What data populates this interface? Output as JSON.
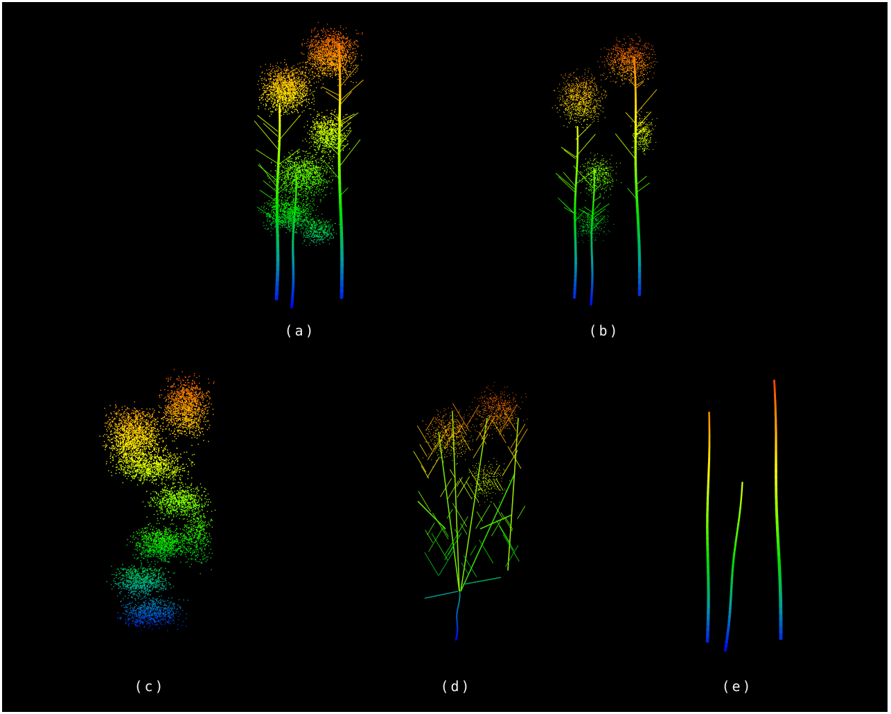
{
  "figure": {
    "background": "#000000",
    "colormap": [
      "#0000ff",
      "#00a0a0",
      "#00e000",
      "#80ff00",
      "#ffff00",
      "#ffa000",
      "#ff4000"
    ],
    "panels": [
      {
        "key": "a",
        "label": "(a)",
        "content": "full-point-cloud-three-trees"
      },
      {
        "key": "b",
        "label": "(b)",
        "content": "three-trees-thinned"
      },
      {
        "key": "c",
        "label": "(c)",
        "content": "foliage-points"
      },
      {
        "key": "d",
        "label": "(d)",
        "content": "branch-skeleton"
      },
      {
        "key": "e",
        "label": "(e)",
        "content": "three-stems"
      }
    ]
  }
}
